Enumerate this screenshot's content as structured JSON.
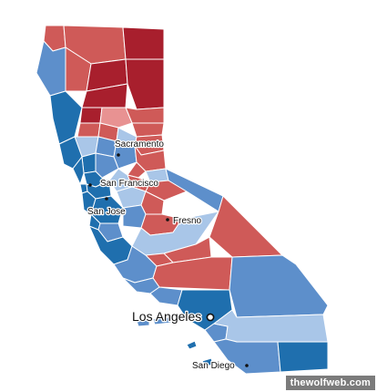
{
  "colors": {
    "strong_rep": "#a81f2d",
    "rep": "#cf5a58",
    "lean_rep": "#e89292",
    "lean_dem": "#a9c6e8",
    "dem": "#5d8fcb",
    "strong_dem": "#1f6fae",
    "border": "#ffffff"
  },
  "cities": [
    {
      "name": "Sacramento",
      "marker": "dot"
    },
    {
      "name": "San Francisco",
      "marker": "dot"
    },
    {
      "name": "San Jose",
      "marker": "dot"
    },
    {
      "name": "Fresno",
      "marker": "dot"
    },
    {
      "name": "Los Angeles",
      "marker": "ring"
    },
    {
      "name": "San Diego",
      "marker": "dot"
    }
  ],
  "watermark": "thewolfweb.com"
}
